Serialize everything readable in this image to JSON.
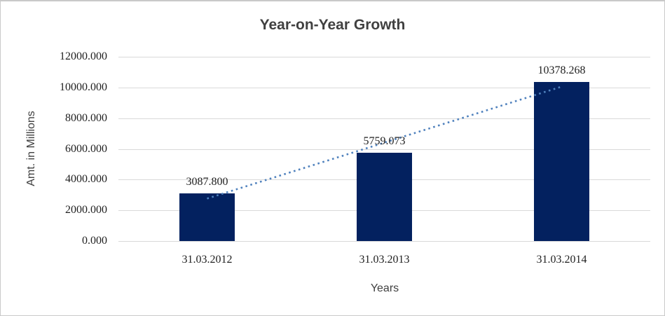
{
  "window": {
    "background_color": "#ffffff",
    "border_color": "#c9c9c9"
  },
  "chart_data": {
    "type": "bar",
    "title": "Year-on-Year Growth",
    "xlabel": "Years",
    "ylabel": "Amt. in Millions",
    "categories": [
      "31.03.2012",
      "31.03.2013",
      "31.03.2014"
    ],
    "series": [
      {
        "name": "Amt. in Millions",
        "values": [
          3087.8,
          5759.073,
          10378.268
        ]
      }
    ],
    "data_labels": [
      "3087.800",
      "5759.073",
      "10378.268"
    ],
    "ytick_labels": [
      "0.000",
      "2000.000",
      "4000.000",
      "6000.000",
      "8000.000",
      "10000.000",
      "12000.000"
    ],
    "ytick_values": [
      0,
      2000,
      4000,
      6000,
      8000,
      10000,
      12000
    ],
    "ylim": [
      0,
      12000
    ],
    "grid": true,
    "legend": "none",
    "bar_color": "#03215f",
    "gridline_color": "#d9d9d9",
    "title_color": "#404040",
    "trendline": {
      "type": "linear",
      "style": "dotted",
      "color": "#4f81bd"
    }
  }
}
